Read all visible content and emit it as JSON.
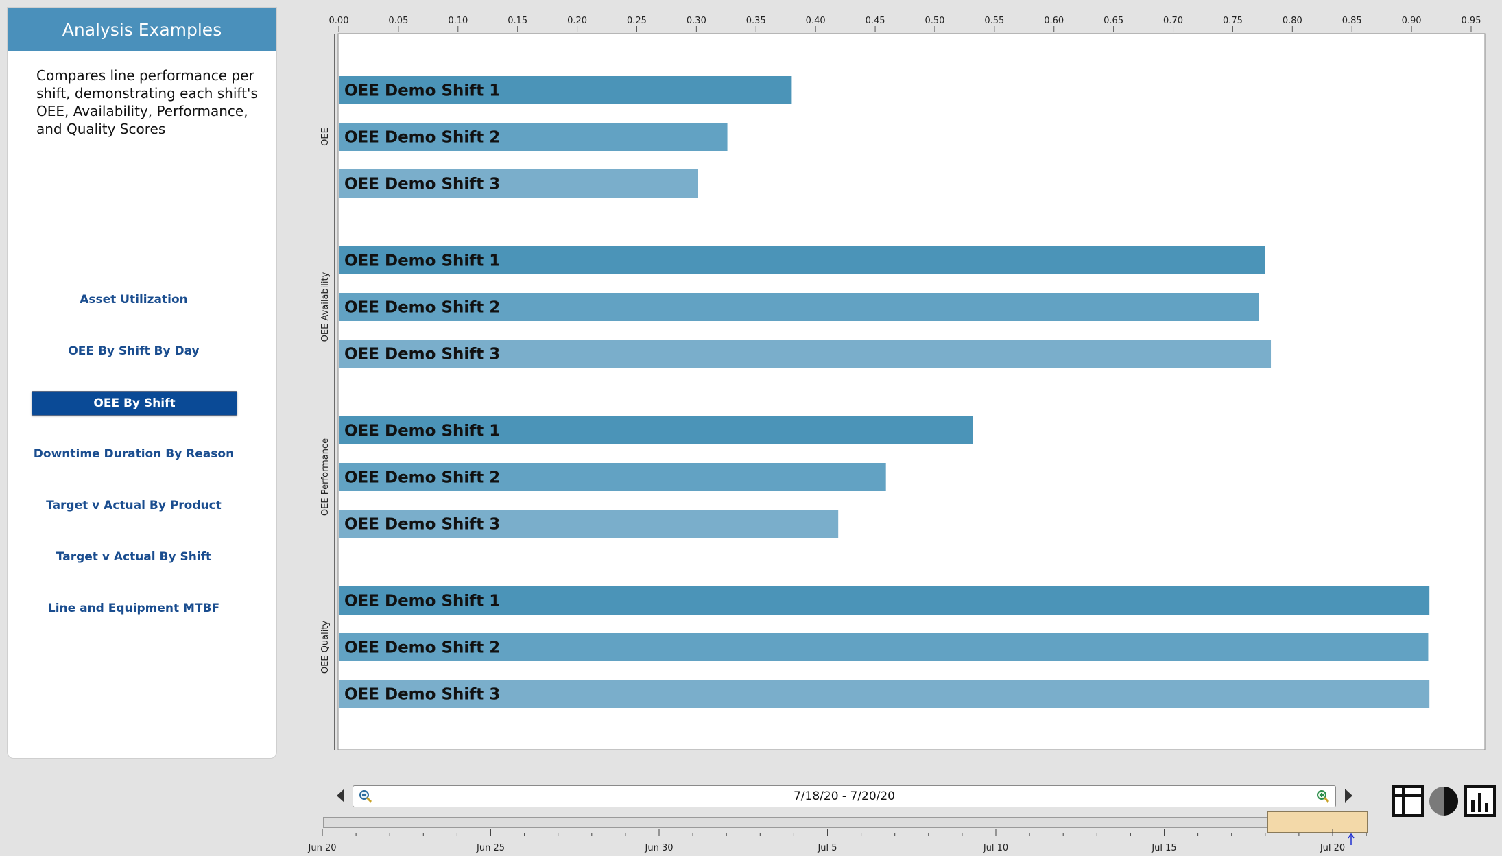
{
  "theme": {
    "header_bg": "#4a90bb",
    "nav_text": "#1a4d8f",
    "nav_active_bg": "#0a4a96",
    "bar_colors": [
      "#4b94b8",
      "#62a2c3",
      "#7aaecb"
    ]
  },
  "sidebar": {
    "title": "Analysis Examples",
    "description": "Compares line performance per shift, demonstrating each shift's OEE, Availability, Performance, and Quality Scores",
    "items": [
      {
        "label": "Asset Utilization",
        "active": false
      },
      {
        "label": "OEE By Shift By Day",
        "active": false
      },
      {
        "label": "OEE By Shift",
        "active": true
      },
      {
        "label": "Downtime Duration By Reason",
        "active": false
      },
      {
        "label": "Target v Actual By Product",
        "active": false
      },
      {
        "label": "Target v Actual By Shift",
        "active": false
      },
      {
        "label": "Line and Equipment MTBF",
        "active": false
      }
    ]
  },
  "chart_data": {
    "type": "bar",
    "orientation": "horizontal",
    "title": "",
    "xlabel": "",
    "ylabel": "",
    "xlim": [
      0,
      0.96
    ],
    "x_ticks": [
      "0.00",
      "0.05",
      "0.10",
      "0.15",
      "0.20",
      "0.25",
      "0.30",
      "0.35",
      "0.40",
      "0.45",
      "0.50",
      "0.55",
      "0.60",
      "0.65",
      "0.70",
      "0.75",
      "0.80",
      "0.85",
      "0.90",
      "0.95"
    ],
    "grid": false,
    "legend": "none",
    "groups": [
      {
        "name": "OEE",
        "bars": [
          {
            "label": "OEE Demo Shift 1",
            "value": 0.38
          },
          {
            "label": "OEE Demo Shift 2",
            "value": 0.326
          },
          {
            "label": "OEE Demo Shift 3",
            "value": 0.301
          }
        ]
      },
      {
        "name": "OEE Availability",
        "bars": [
          {
            "label": "OEE Demo Shift 1",
            "value": 0.777
          },
          {
            "label": "OEE Demo Shift 2",
            "value": 0.772
          },
          {
            "label": "OEE Demo Shift 3",
            "value": 0.782
          }
        ]
      },
      {
        "name": "OEE Performance",
        "bars": [
          {
            "label": "OEE Demo Shift 1",
            "value": 0.532
          },
          {
            "label": "OEE Demo Shift 2",
            "value": 0.459
          },
          {
            "label": "OEE Demo Shift 3",
            "value": 0.419
          }
        ]
      },
      {
        "name": "OEE Quality",
        "bars": [
          {
            "label": "OEE Demo Shift 1",
            "value": 0.915
          },
          {
            "label": "OEE Demo Shift 2",
            "value": 0.914
          },
          {
            "label": "OEE Demo Shift 3",
            "value": 0.915
          }
        ]
      }
    ]
  },
  "range": {
    "text": "7/18/20 - 7/20/20",
    "zoom_out_icon": "zoom-out-icon",
    "zoom_in_icon": "zoom-in-icon",
    "prev_icon": "chevron-left-icon",
    "next_icon": "chevron-right-icon"
  },
  "timeline": {
    "labels": [
      "Jun 20",
      "Jun 25",
      "Jun 30",
      "Jul 5",
      "Jul 10",
      "Jul 15",
      "Jul 20"
    ],
    "marker_icon": "current-date-marker-icon"
  },
  "toolbar": {
    "icons": [
      "table-icon",
      "pie-chart-icon",
      "bar-chart-icon"
    ]
  }
}
